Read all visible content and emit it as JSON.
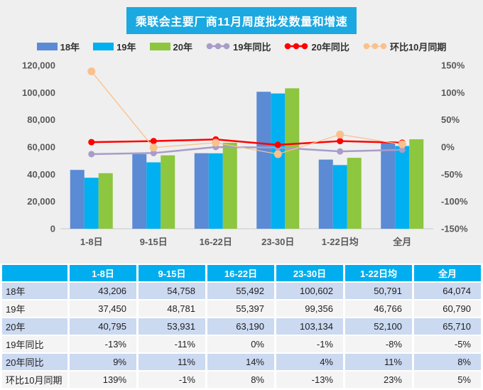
{
  "title": "乘联会主要厂商11月周度批发数量和增速",
  "colors": {
    "title_bg": "#1CA8E0",
    "chart_bg": "#EFEFEF",
    "table_header_bg": "#00AEEF",
    "row_blue": "#CBD9F1",
    "row_gray": "#F4F4F4",
    "axis_text": "#595959",
    "bar_18": "#5B8BD4",
    "bar_19": "#00B0F0",
    "bar_20": "#8DC63F",
    "line_19_yoy": "#A89CC8",
    "line_20_yoy": "#FF0000",
    "line_mom": "#FAC08E"
  },
  "legend": [
    {
      "label": "18年",
      "type": "bar",
      "color": "#5B8BD4"
    },
    {
      "label": "19年",
      "type": "bar",
      "color": "#00B0F0"
    },
    {
      "label": "20年",
      "type": "bar",
      "color": "#8DC63F"
    },
    {
      "label": "19年同比",
      "type": "line",
      "color": "#A89CC8"
    },
    {
      "label": "20年同比",
      "type": "line",
      "color": "#FF0000"
    },
    {
      "label": "环比10月同期",
      "type": "line",
      "color": "#FAC08E"
    }
  ],
  "chart_data": {
    "type": "bar",
    "subtype": "grouped bars with overlaid percent lines (dual axis)",
    "title": "乘联会主要厂商11月周度批发数量和增速",
    "categories": [
      "1-8日",
      "9-15日",
      "16-22日",
      "23-30日",
      "1-22日均",
      "全月"
    ],
    "bar_series": [
      {
        "name": "18年",
        "color": "#5B8BD4",
        "values": [
          43206,
          54758,
          55492,
          100602,
          50791,
          64074
        ]
      },
      {
        "name": "19年",
        "color": "#00B0F0",
        "values": [
          37450,
          48781,
          55397,
          99356,
          46766,
          60790
        ]
      },
      {
        "name": "20年",
        "color": "#8DC63F",
        "values": [
          40795,
          53931,
          63190,
          103134,
          52100,
          65710
        ]
      }
    ],
    "line_series": [
      {
        "name": "19年同比",
        "color": "#A89CC8",
        "line_width": 2.5,
        "marker_r": 4.5,
        "values": [
          -13,
          -11,
          0,
          -1,
          -8,
          -5
        ]
      },
      {
        "name": "20年同比",
        "color": "#FF0000",
        "line_width": 2.5,
        "marker_r": 4.5,
        "values": [
          9,
          11,
          14,
          4,
          11,
          8
        ]
      },
      {
        "name": "环比10月同期",
        "color": "#FAC08E",
        "line_width": 1.3,
        "marker_r": 5.5,
        "values": [
          139,
          -1,
          8,
          -13,
          23,
          5
        ]
      }
    ],
    "left_axis": {
      "min": 0,
      "max": 120000,
      "ticks": [
        "0",
        "20,000",
        "40,000",
        "60,000",
        "80,000",
        "100,000",
        "120,000"
      ]
    },
    "right_axis": {
      "min": -150,
      "max": 150,
      "ticks": [
        "-150%",
        "-100%",
        "-50%",
        "0%",
        "50%",
        "100%",
        "150%"
      ]
    },
    "legend_position": "top",
    "grid": false
  },
  "table": {
    "header": [
      "",
      "1-8日",
      "9-15日",
      "16-22日",
      "23-30日",
      "1-22日均",
      "全月"
    ],
    "rows": [
      {
        "label": "18年",
        "cells": [
          "43,206",
          "54,758",
          "55,492",
          "100,602",
          "50,791",
          "64,074"
        ]
      },
      {
        "label": "19年",
        "cells": [
          "37,450",
          "48,781",
          "55,397",
          "99,356",
          "46,766",
          "60,790"
        ]
      },
      {
        "label": "20年",
        "cells": [
          "40,795",
          "53,931",
          "63,190",
          "103,134",
          "52,100",
          "65,710"
        ]
      },
      {
        "label": "19年同比",
        "cells": [
          "-13%",
          "-11%",
          "0%",
          "-1%",
          "-8%",
          "-5%"
        ]
      },
      {
        "label": "20年同比",
        "cells": [
          "9%",
          "11%",
          "14%",
          "4%",
          "11%",
          "8%"
        ]
      },
      {
        "label": "环比10月同期",
        "cells": [
          "139%",
          "-1%",
          "8%",
          "-13%",
          "23%",
          "5%"
        ]
      }
    ]
  }
}
